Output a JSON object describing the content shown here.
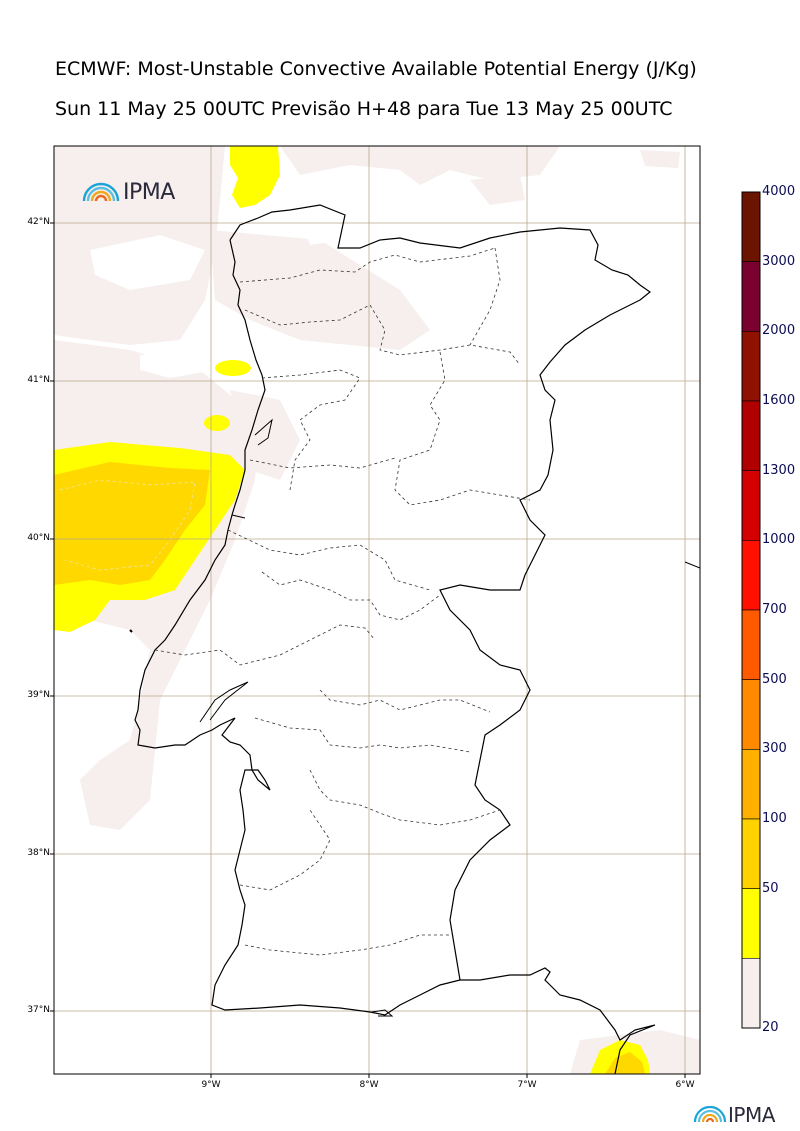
{
  "header": {
    "title_line1": "ECMWF: Most-Unstable Convective Available Potential Energy (J/Kg)",
    "title_line2": "Sun 11 May 25 00UTC Previsão H+48 para Tue 13 May 25 00UTC"
  },
  "map": {
    "lat_labels": [
      "42°N",
      "41°N",
      "40°N",
      "39°N",
      "38°N",
      "37°N"
    ],
    "lon_labels": [
      "9°W",
      "8°W",
      "7°W",
      "6°W"
    ],
    "grid_color": "#b8a98e",
    "coast_color": "#000000"
  },
  "colorbar": {
    "levels": [
      "4000",
      "3000",
      "2000",
      "1600",
      "1300",
      "1000",
      "700",
      "500",
      "300",
      "100",
      "50",
      "20"
    ],
    "colors": [
      "#6b1400",
      "#7a0030",
      "#8f1200",
      "#b00000",
      "#d40000",
      "#ff1000",
      "#ff5a00",
      "#ff8a00",
      "#ffb000",
      "#ffd200",
      "#ffff00",
      "#f7eeee"
    ]
  },
  "logo": {
    "text": "IPMA"
  }
}
